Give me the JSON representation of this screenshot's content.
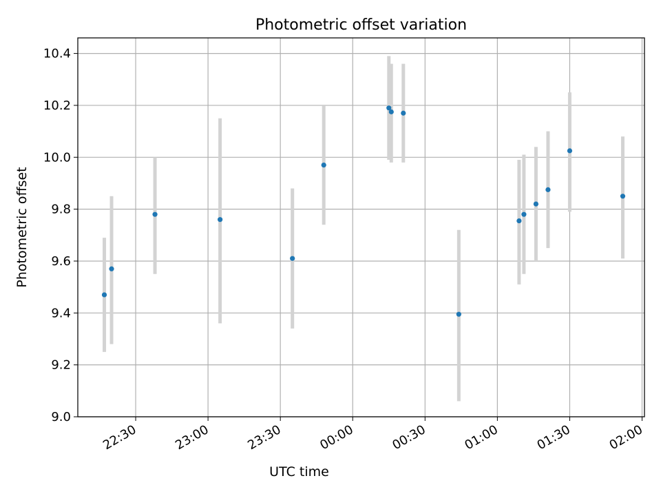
{
  "chart_data": {
    "type": "scatter",
    "title": "Photometric offset variation",
    "xlabel": "UTC time",
    "ylabel": "Photometric offset",
    "xlim": [
      "22:06",
      "02:01"
    ],
    "ylim": [
      9.0,
      10.46
    ],
    "grid": true,
    "x_ticks": [
      "22:30",
      "23:00",
      "23:30",
      "00:00",
      "00:30",
      "01:00",
      "01:30",
      "02:00"
    ],
    "y_ticks": [
      "9.0",
      "9.2",
      "9.4",
      "9.6",
      "9.8",
      "10.0",
      "10.2",
      "10.4"
    ],
    "marker_color": "#1f77b4",
    "errorbar_color": "#d3d3d3",
    "points": [
      {
        "x": "22:17",
        "y": 9.47,
        "err_low": 9.25,
        "err_high": 9.69
      },
      {
        "x": "22:20",
        "y": 9.57,
        "err_low": 9.28,
        "err_high": 9.85
      },
      {
        "x": "22:38",
        "y": 9.78,
        "err_low": 9.55,
        "err_high": 10.0
      },
      {
        "x": "23:05",
        "y": 9.76,
        "err_low": 9.36,
        "err_high": 10.15
      },
      {
        "x": "23:35",
        "y": 9.61,
        "err_low": 9.34,
        "err_high": 9.88
      },
      {
        "x": "23:48",
        "y": 9.97,
        "err_low": 9.74,
        "err_high": 10.2
      },
      {
        "x": "00:15",
        "y": 10.19,
        "err_low": 9.99,
        "err_high": 10.39
      },
      {
        "x": "00:16",
        "y": 10.175,
        "err_low": 9.98,
        "err_high": 10.36
      },
      {
        "x": "00:21",
        "y": 10.17,
        "err_low": 9.98,
        "err_high": 10.36
      },
      {
        "x": "00:44",
        "y": 9.395,
        "err_low": 9.06,
        "err_high": 9.72
      },
      {
        "x": "01:09",
        "y": 9.755,
        "err_low": 9.51,
        "err_high": 9.99
      },
      {
        "x": "01:11",
        "y": 9.78,
        "err_low": 9.55,
        "err_high": 10.01
      },
      {
        "x": "01:16",
        "y": 9.82,
        "err_low": 9.6,
        "err_high": 10.04
      },
      {
        "x": "01:21",
        "y": 9.875,
        "err_low": 9.65,
        "err_high": 10.1
      },
      {
        "x": "01:30",
        "y": 10.025,
        "err_low": 9.79,
        "err_high": 10.25
      },
      {
        "x": "01:52",
        "y": 9.85,
        "err_low": 9.61,
        "err_high": 10.08
      }
    ]
  }
}
